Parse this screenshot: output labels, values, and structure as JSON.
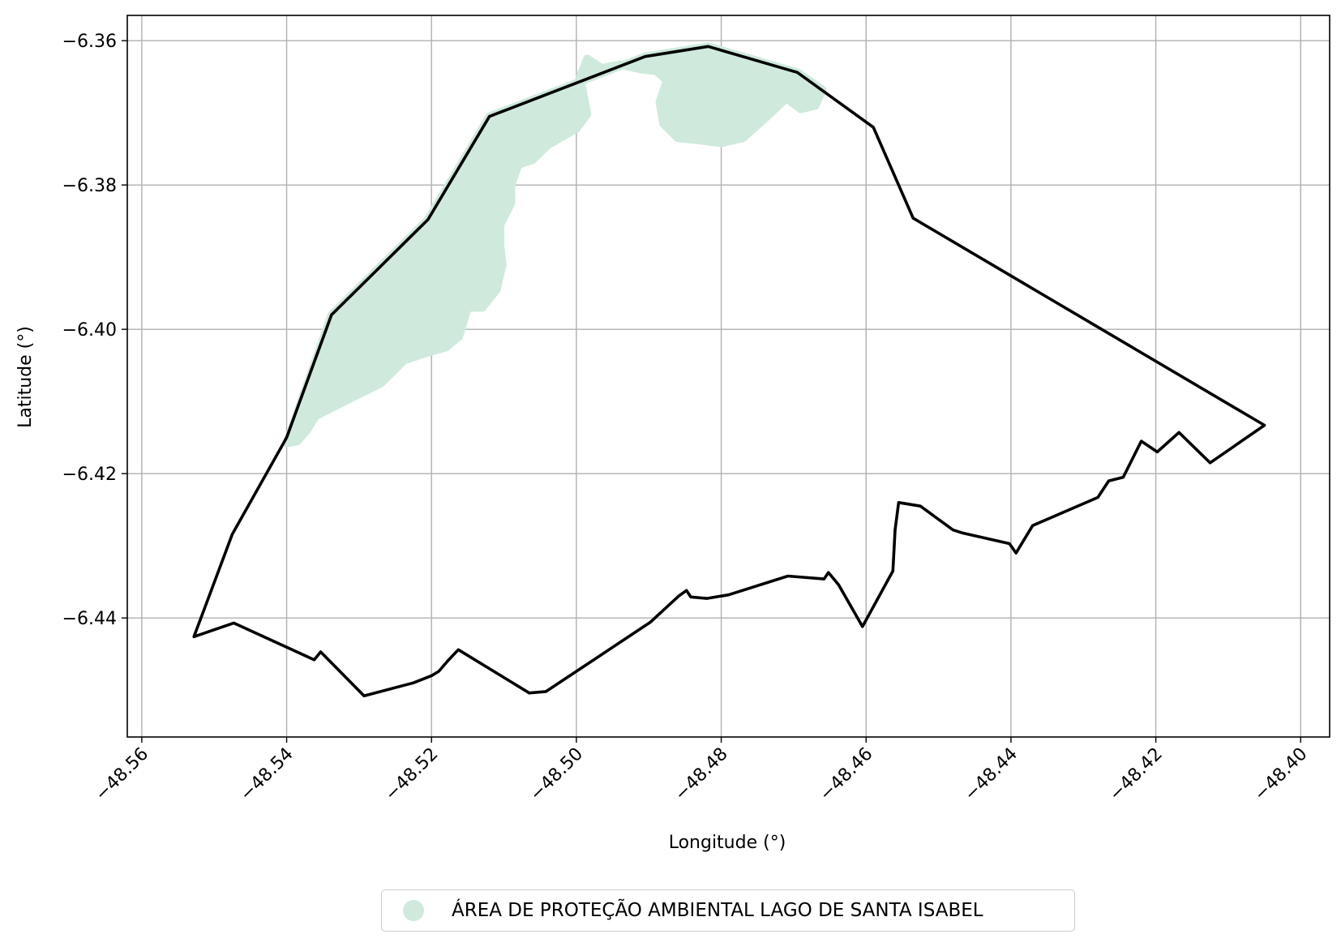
{
  "chart_data": {
    "type": "map",
    "xlabel": "Longitude (°)",
    "ylabel": "Latitude (°)",
    "xlim": [
      -48.562,
      -48.396
    ],
    "ylim": [
      -6.4565,
      -6.3565
    ],
    "xticks": [
      -48.56,
      -48.54,
      -48.52,
      -48.5,
      -48.48,
      -48.46,
      -48.44,
      -48.42,
      -48.4
    ],
    "xtick_labels": [
      "−48.56",
      "−48.54",
      "−48.52",
      "−48.50",
      "−48.48",
      "−48.46",
      "−48.44",
      "−48.42",
      "−48.40"
    ],
    "yticks": [
      -6.36,
      -6.38,
      -6.4,
      -6.42,
      -6.44
    ],
    "ytick_labels": [
      "−6.36",
      "−6.38",
      "−6.40",
      "−6.42",
      "−6.44"
    ],
    "grid": true,
    "legend_position": "bottom-center",
    "boundary_color": "#000000",
    "area_color": "#cfeadd",
    "boundary": [
      [
        -48.5528,
        -6.4426
      ],
      [
        -48.5475,
        -6.4284
      ],
      [
        -48.54,
        -6.415
      ],
      [
        -48.5338,
        -6.398
      ],
      [
        -48.5205,
        -6.3848
      ],
      [
        -48.512,
        -6.3705
      ],
      [
        -48.4905,
        -6.3622
      ],
      [
        -48.4818,
        -6.3608
      ],
      [
        -48.4695,
        -6.3644
      ],
      [
        -48.459,
        -6.372
      ],
      [
        -48.4535,
        -6.3846
      ],
      [
        -48.405,
        -6.4133
      ],
      [
        -48.4125,
        -6.4185
      ],
      [
        -48.4168,
        -6.4143
      ],
      [
        -48.4198,
        -6.417
      ],
      [
        -48.422,
        -6.4155
      ],
      [
        -48.4245,
        -6.4205
      ],
      [
        -48.4265,
        -6.421
      ],
      [
        -48.428,
        -6.4233
      ],
      [
        -48.437,
        -6.4272
      ],
      [
        -48.4393,
        -6.431
      ],
      [
        -48.4402,
        -6.4297
      ],
      [
        -48.4468,
        -6.4282
      ],
      [
        -48.448,
        -6.4278
      ],
      [
        -48.4525,
        -6.4245
      ],
      [
        -48.4555,
        -6.424
      ],
      [
        -48.456,
        -6.4278
      ],
      [
        -48.4563,
        -6.4335
      ],
      [
        -48.4605,
        -6.4412
      ],
      [
        -48.4638,
        -6.4354
      ],
      [
        -48.4652,
        -6.4337
      ],
      [
        -48.4658,
        -6.4346
      ],
      [
        -48.4708,
        -6.4342
      ],
      [
        -48.479,
        -6.4368
      ],
      [
        -48.482,
        -6.4373
      ],
      [
        -48.4842,
        -6.4371
      ],
      [
        -48.4848,
        -6.4362
      ],
      [
        -48.4858,
        -6.4369
      ],
      [
        -48.4898,
        -6.4406
      ],
      [
        -48.497,
        -6.4454
      ],
      [
        -48.5042,
        -6.4502
      ],
      [
        -48.5065,
        -6.4504
      ],
      [
        -48.5163,
        -6.4444
      ],
      [
        -48.5178,
        -6.446
      ],
      [
        -48.519,
        -6.4474
      ],
      [
        -48.52,
        -6.448
      ],
      [
        -48.5225,
        -6.449
      ],
      [
        -48.5293,
        -6.4508
      ],
      [
        -48.5353,
        -6.4447
      ],
      [
        -48.5362,
        -6.4458
      ],
      [
        -48.5473,
        -6.4407
      ],
      [
        -48.5528,
        -6.4426
      ]
    ],
    "protected_area": [
      [
        -48.54,
        -6.4158
      ],
      [
        -48.5338,
        -6.398
      ],
      [
        -48.5205,
        -6.3848
      ],
      [
        -48.512,
        -6.3705
      ],
      [
        -48.4905,
        -6.3622
      ],
      [
        -48.4818,
        -6.3608
      ],
      [
        -48.4695,
        -6.3644
      ],
      [
        -48.466,
        -6.3668
      ],
      [
        -48.467,
        -6.369
      ],
      [
        -48.469,
        -6.3695
      ],
      [
        -48.471,
        -6.368
      ],
      [
        -48.474,
        -6.3708
      ],
      [
        -48.477,
        -6.3735
      ],
      [
        -48.48,
        -6.3742
      ],
      [
        -48.483,
        -6.3738
      ],
      [
        -48.486,
        -6.3735
      ],
      [
        -48.488,
        -6.3715
      ],
      [
        -48.4885,
        -6.3685
      ],
      [
        -48.4875,
        -6.3655
      ],
      [
        -48.489,
        -6.3642
      ],
      [
        -48.491,
        -6.364
      ],
      [
        -48.494,
        -6.3633
      ],
      [
        -48.4965,
        -6.3638
      ],
      [
        -48.4985,
        -6.3625
      ],
      [
        -48.4995,
        -6.365
      ],
      [
        -48.4985,
        -6.3702
      ],
      [
        -48.5,
        -6.3722
      ],
      [
        -48.504,
        -6.3745
      ],
      [
        -48.506,
        -6.3765
      ],
      [
        -48.508,
        -6.3772
      ],
      [
        -48.509,
        -6.38
      ],
      [
        -48.509,
        -6.3825
      ],
      [
        -48.5105,
        -6.3855
      ],
      [
        -48.5105,
        -6.3885
      ],
      [
        -48.5102,
        -6.391
      ],
      [
        -48.511,
        -6.3945
      ],
      [
        -48.513,
        -6.397
      ],
      [
        -48.515,
        -6.397
      ],
      [
        -48.5162,
        -6.401
      ],
      [
        -48.518,
        -6.4025
      ],
      [
        -48.5205,
        -6.4032
      ],
      [
        -48.5238,
        -6.4043
      ],
      [
        -48.527,
        -6.4075
      ],
      [
        -48.53,
        -6.409
      ],
      [
        -48.536,
        -6.412
      ],
      [
        -48.5372,
        -6.414
      ],
      [
        -48.5385,
        -6.4155
      ],
      [
        -48.54,
        -6.4158
      ]
    ],
    "series": [
      {
        "name": "ÁREA DE PROTEÇÃO AMBIENTAL LAGO DE SANTA ISABEL"
      }
    ]
  }
}
